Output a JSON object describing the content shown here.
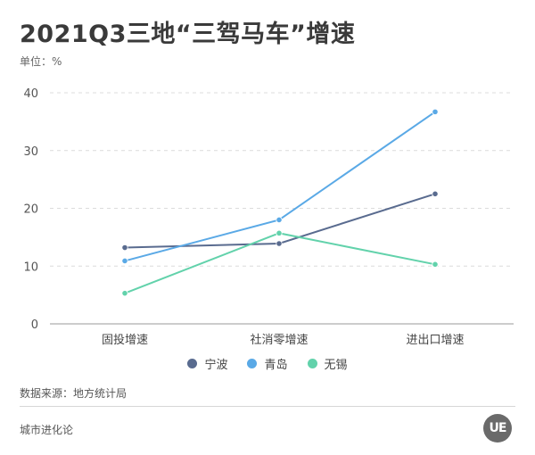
{
  "title": "2021Q3三地“三驾马车”增速",
  "unit_label": "单位：%",
  "source": "数据来源：地方统计局",
  "brand": "城市进化论",
  "logo_text": "UE",
  "chart_data": {
    "type": "line",
    "categories": [
      "固投增速",
      "社消零增速",
      "进出口增速"
    ],
    "ylim": [
      0,
      40
    ],
    "yticks": [
      0,
      10,
      20,
      30,
      40
    ],
    "grid": true,
    "legend_position": "bottom",
    "series": [
      {
        "name": "宁波",
        "color": "#596b8f",
        "values": [
          13.2,
          13.9,
          22.5
        ]
      },
      {
        "name": "青岛",
        "color": "#5aa9e6",
        "values": [
          10.9,
          18.0,
          36.7
        ]
      },
      {
        "name": "无锡",
        "color": "#62d2ab",
        "values": [
          5.3,
          15.7,
          10.3
        ]
      }
    ]
  }
}
